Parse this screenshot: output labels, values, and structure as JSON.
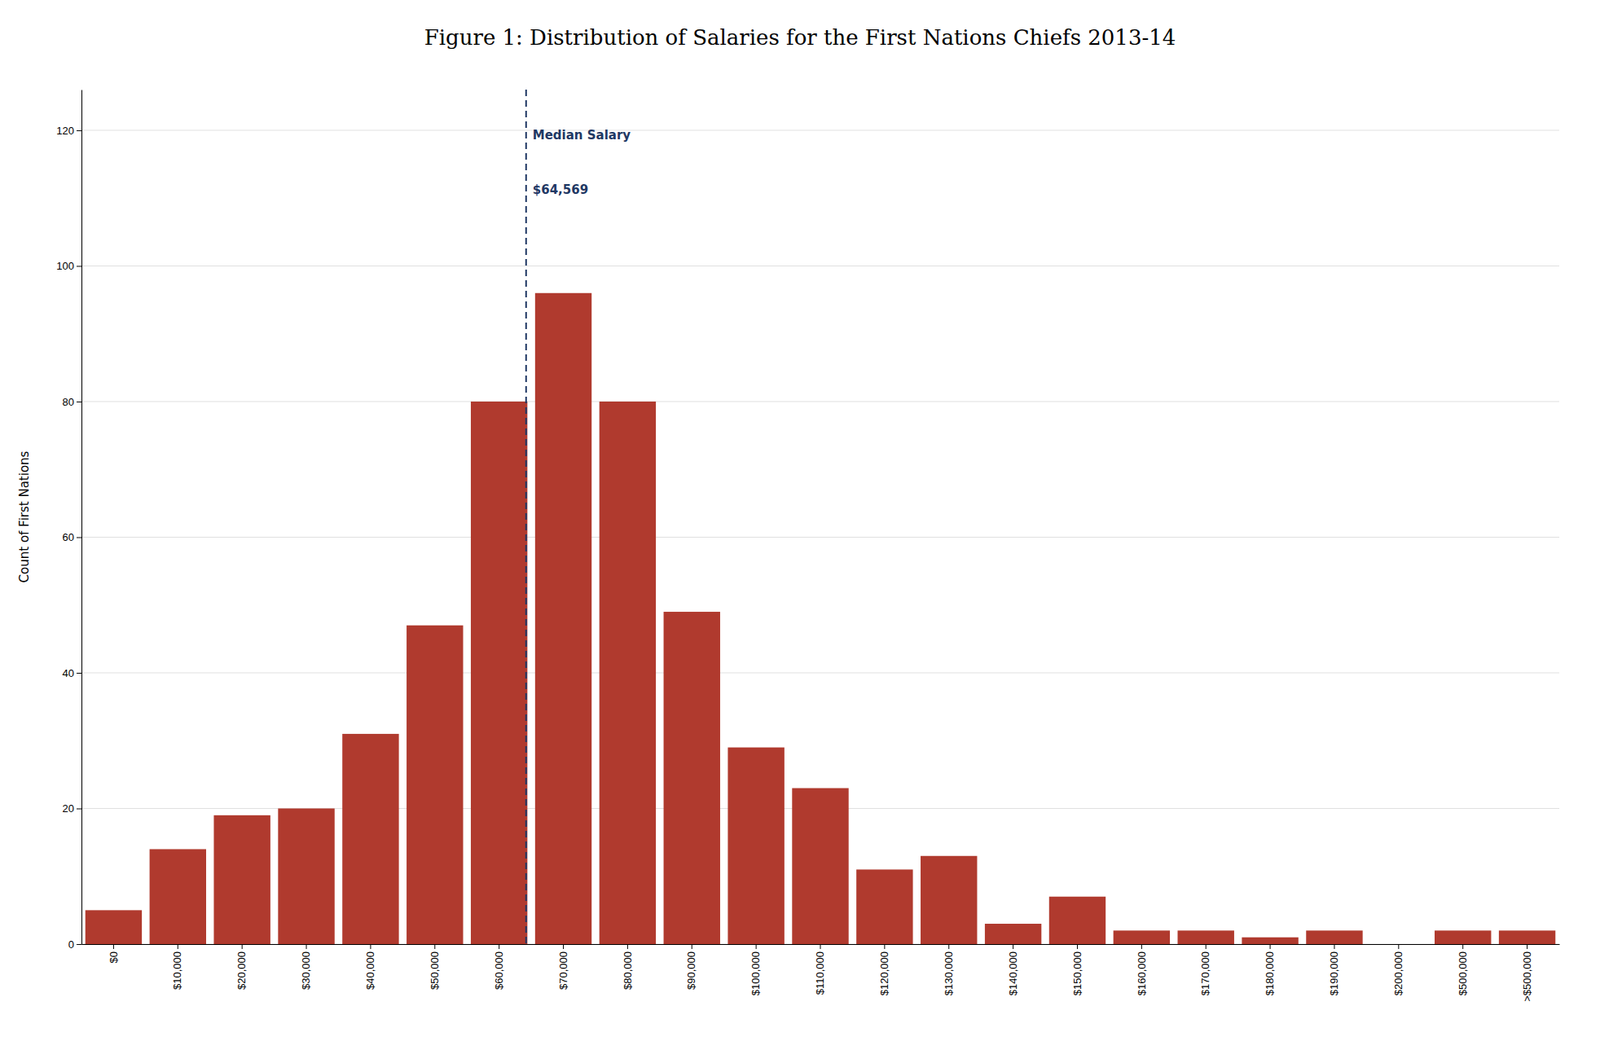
{
  "chart_data": {
    "type": "bar",
    "title": "Figure 1: Distribution of Salaries for the First Nations Chiefs 2013-14",
    "ylabel": "Count of First Nations",
    "categories": [
      "$0",
      "$10,000",
      "$20,000",
      "$30,000",
      "$40,000",
      "$50,000",
      "$60,000",
      "$70,000",
      "$80,000",
      "$90,000",
      "$100,000",
      "$110,000",
      "$120,000",
      "$130,000",
      "$140,000",
      "$150,000",
      "$160,000",
      "$170,000",
      "$180,000",
      "$190,000",
      "$200,000",
      "$500,000",
      ">$500,000"
    ],
    "values": [
      5,
      14,
      19,
      20,
      31,
      47,
      80,
      96,
      80,
      49,
      29,
      23,
      11,
      13,
      3,
      7,
      2,
      2,
      1,
      2,
      0,
      2,
      2
    ],
    "color": "#b03a2e",
    "ylim": [
      0,
      126
    ],
    "yticks": [
      0,
      20,
      40,
      60,
      80,
      100,
      120
    ],
    "grid": true,
    "reference_lines": [
      {
        "x": 6.42,
        "color": "#1f3864",
        "line_style": "dashed"
      }
    ],
    "annotations": [
      {
        "text": "Median Salary",
        "x": 6.42,
        "y": 120,
        "color": "#1f3864"
      },
      {
        "text": "$64,569",
        "x": 6.42,
        "y": 112,
        "color": "#1f3864"
      }
    ]
  }
}
